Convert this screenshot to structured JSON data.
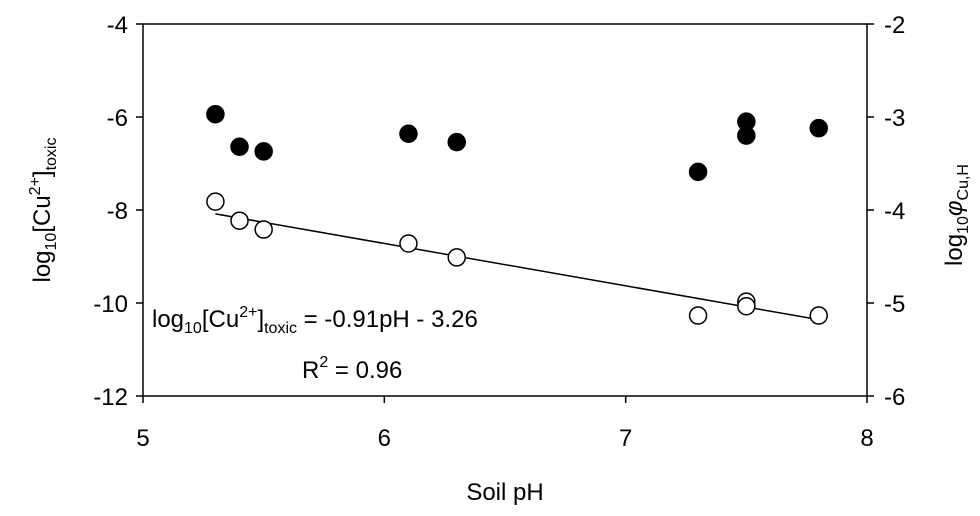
{
  "chart_data": {
    "type": "scatter",
    "xlabel": "Soil pH",
    "ylabel_left": {
      "prefix": "log",
      "log_sub": "10",
      "main": "[Cu",
      "sup": "2+",
      "close": "]",
      "sub": "toxic"
    },
    "ylabel_right": {
      "prefix": "log",
      "log_sub": "10",
      "symbol": "φ",
      "sub": "Cu,H"
    },
    "xlim": [
      5,
      8
    ],
    "ylim_left": [
      -12,
      -4
    ],
    "ylim_right": [
      -6,
      -2
    ],
    "x_ticks": [
      "5",
      "6",
      "7",
      "8"
    ],
    "y_left_ticks": [
      "-4",
      "-6",
      "-8",
      "-10",
      "-12"
    ],
    "y_right_ticks": [
      "-2",
      "-3",
      "-4",
      "-5",
      "-6"
    ],
    "grid": false,
    "series": [
      {
        "marker": "filled-circle",
        "axis": "right",
        "x": [
          5.3,
          5.4,
          5.5,
          6.1,
          6.3,
          7.3,
          7.5,
          7.5,
          7.8
        ],
        "y": [
          -2.97,
          -3.32,
          -3.37,
          -3.18,
          -3.27,
          -3.59,
          -3.05,
          -3.2,
          -3.12
        ]
      },
      {
        "marker": "open-circle",
        "axis": "left",
        "x": [
          5.3,
          5.4,
          5.5,
          6.1,
          6.3,
          7.3,
          7.5,
          7.5,
          7.8
        ],
        "y": [
          -7.82,
          -8.23,
          -8.42,
          -8.72,
          -9.02,
          -10.27,
          -9.97,
          -10.07,
          -10.27
        ]
      }
    ],
    "trendline": {
      "axis": "left",
      "slope": -0.91,
      "intercept": -3.26,
      "x_range": [
        5.3,
        7.8
      ]
    },
    "annotations": {
      "equation": {
        "prefix": "log",
        "log_sub": "10",
        "main": "[Cu",
        "sup": "2+",
        "close": "]",
        "sub": "toxic",
        "rest": " = -0.91pH - 3.26"
      },
      "r2": {
        "prefix": "R",
        "sup": "2",
        "rest": " = 0.96"
      }
    }
  }
}
